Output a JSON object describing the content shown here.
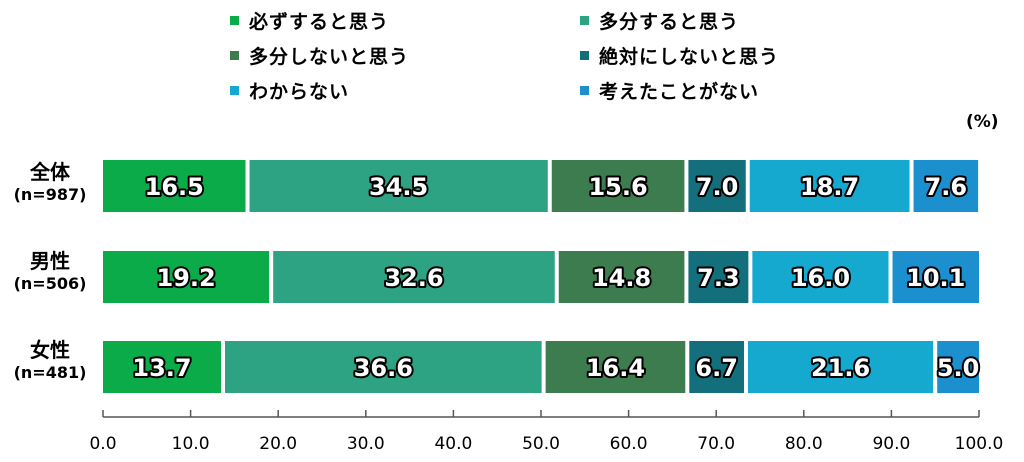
{
  "legend": [
    {
      "label": "必ずすると思う",
      "color": "#0aab48"
    },
    {
      "label": "多分すると思う",
      "color": "#2da383"
    },
    {
      "label": "多分しないと思う",
      "color": "#3d7c4f"
    },
    {
      "label": "絶対にしないと思う",
      "color": "#126f7b"
    },
    {
      "label": "わからない",
      "color": "#15a9cf"
    },
    {
      "label": "考えたことがない",
      "color": "#1c8fcf"
    }
  ],
  "unit_label": "(%)",
  "rows": [
    {
      "name": "全体",
      "n": "(n=987)"
    },
    {
      "name": "男性",
      "n": "(n=506)"
    },
    {
      "name": "女性",
      "n": "(n=481)"
    }
  ],
  "chart_data": {
    "type": "bar",
    "orientation": "horizontal",
    "stacked": true,
    "categories": [
      "全体 (n=987)",
      "男性 (n=506)",
      "女性 (n=481)"
    ],
    "series": [
      {
        "name": "必ずすると思う",
        "values": [
          16.5,
          19.2,
          13.7
        ]
      },
      {
        "name": "多分すると思う",
        "values": [
          34.5,
          32.6,
          36.6
        ]
      },
      {
        "name": "多分しないと思う",
        "values": [
          15.6,
          14.8,
          16.4
        ]
      },
      {
        "name": "絶対にしないと思う",
        "values": [
          7.0,
          7.3,
          6.7
        ]
      },
      {
        "name": "わからない",
        "values": [
          18.7,
          16.0,
          21.6
        ]
      },
      {
        "name": "考えたことがない",
        "values": [
          7.6,
          10.1,
          5.0
        ]
      }
    ],
    "xlim": [
      0,
      100
    ],
    "x_ticks": [
      "0.0",
      "10.0",
      "20.0",
      "30.0",
      "40.0",
      "50.0",
      "60.0",
      "70.0",
      "80.0",
      "90.0",
      "100.0"
    ],
    "legend_position": "top",
    "grid": false
  }
}
